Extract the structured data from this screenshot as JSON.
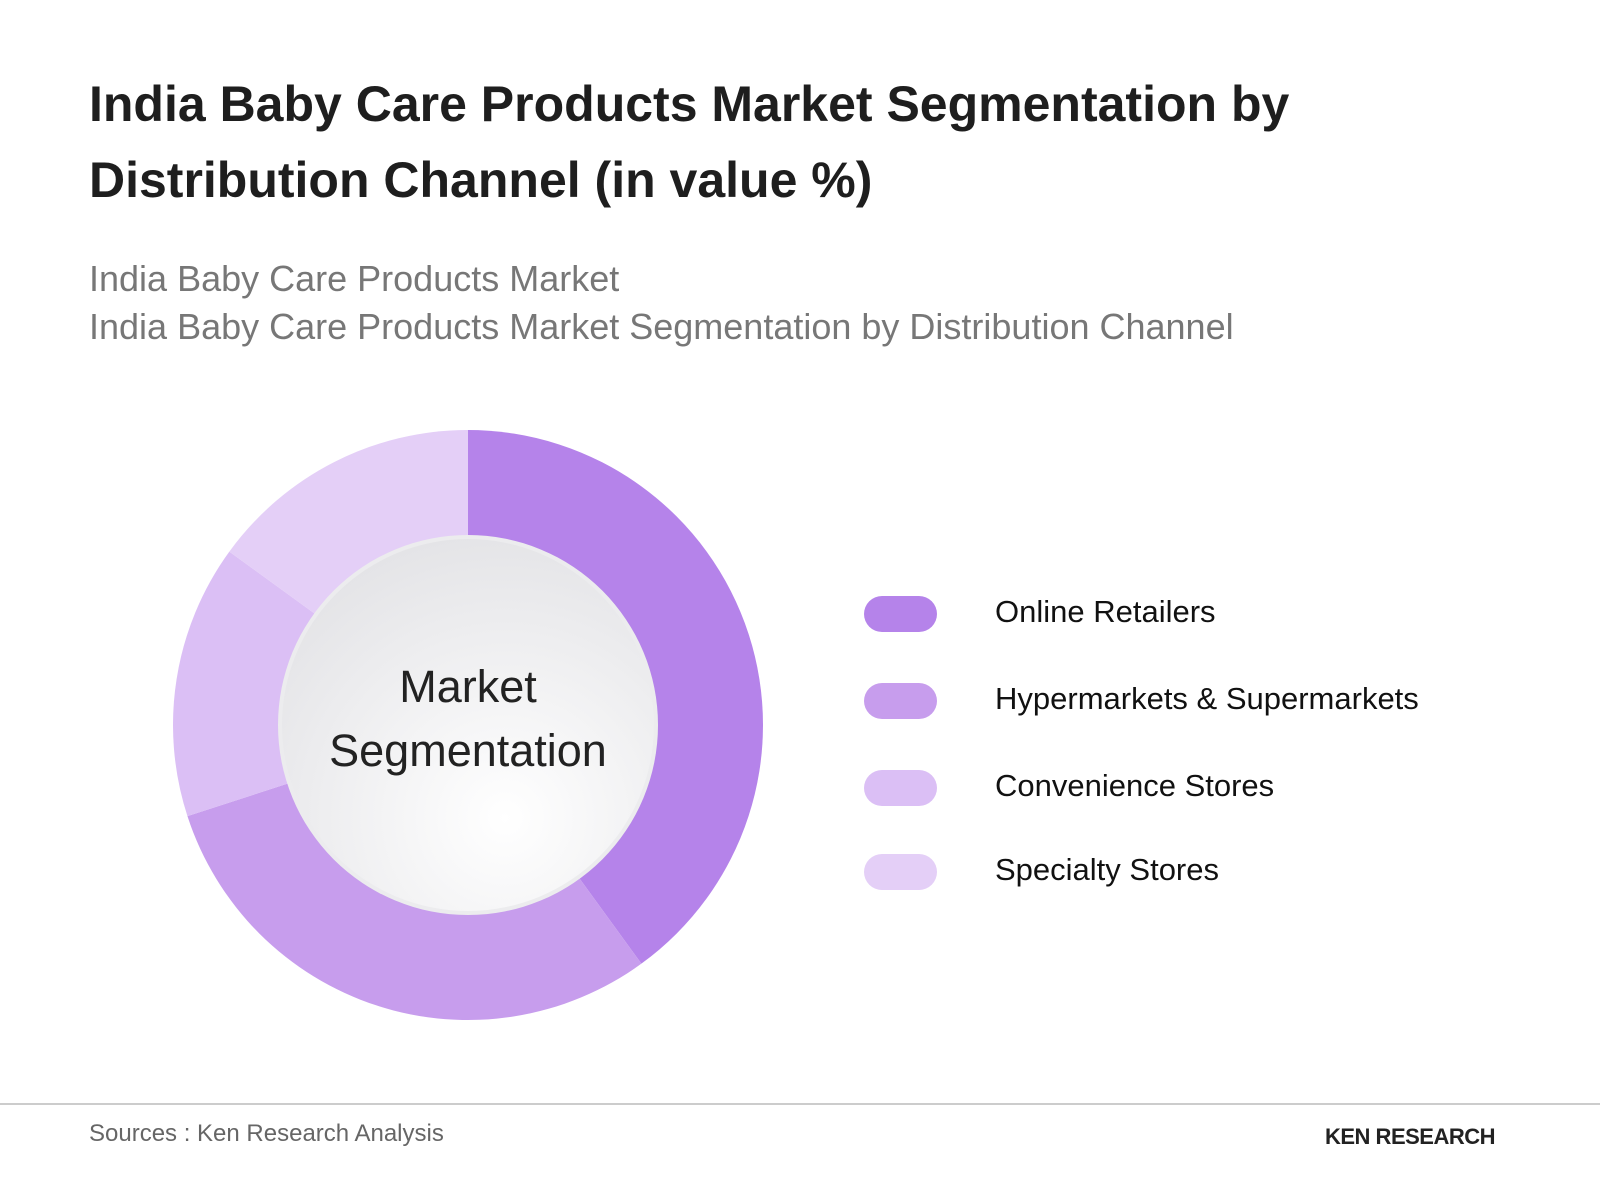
{
  "chart_data": {
    "type": "donut",
    "title": "India Baby Care Products Market Segmentation by Distribution Channel (in value %)",
    "subtitle": [
      "India Baby Care Products Market",
      "India Baby Care Products Market Segmentation by Distribution Channel"
    ],
    "center_label": "Market Segmentation",
    "categories": [
      "Online Retailers",
      "Hypermarkets & Supermarkets",
      "Convenience Stores",
      "Specialty Stores"
    ],
    "values": [
      40,
      30,
      15,
      15
    ],
    "colors": [
      "#b583ea",
      "#c79ded",
      "#dbbff5",
      "#e4cff7"
    ],
    "legend": "right",
    "source": "Sources : Ken Research Analysis",
    "brand": "KEN RESEARCH"
  }
}
